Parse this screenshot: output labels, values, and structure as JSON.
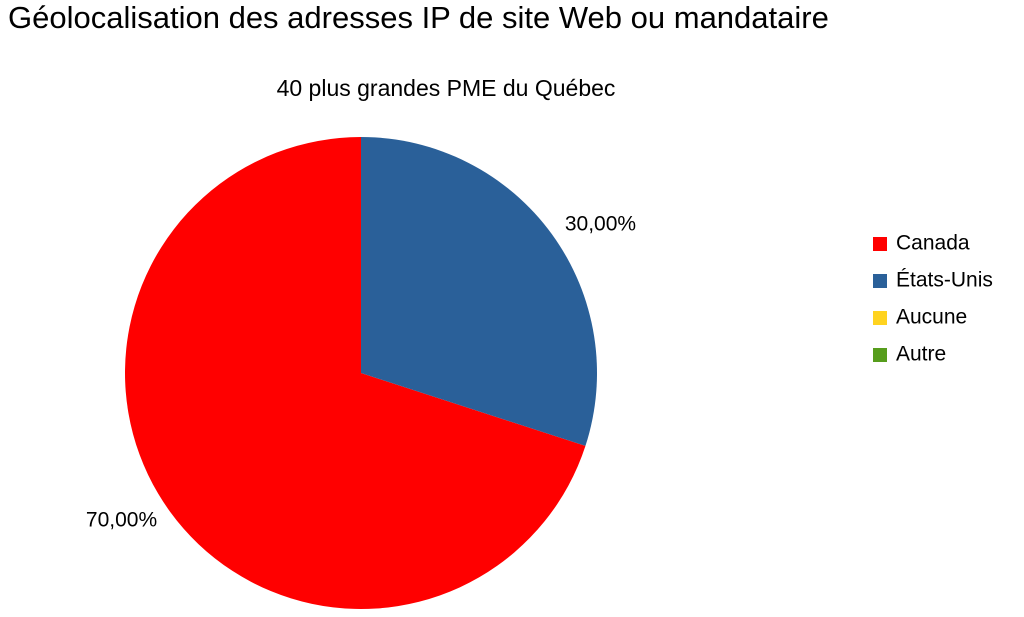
{
  "chart_data": {
    "type": "pie",
    "title": "Géolocalisation des adresses IP de site Web ou mandataire",
    "subtitle": "40 plus grandes PME du Québec",
    "categories": [
      "Canada",
      "États-Unis",
      "Aucune",
      "Autre"
    ],
    "values": [
      70,
      30,
      0,
      0
    ],
    "value_labels": [
      "70,00%",
      "30,00%",
      null,
      null
    ],
    "colors": [
      "#ff0000",
      "#2a6099",
      "#ffd320",
      "#579d1c"
    ],
    "legend": "right"
  }
}
